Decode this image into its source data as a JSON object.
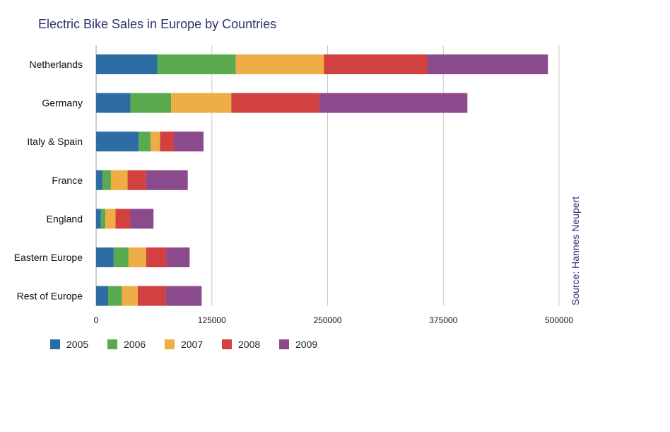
{
  "chart_data": {
    "type": "bar",
    "orientation": "horizontal",
    "stacked": true,
    "title": "Electric Bike Sales in Europe by Countries",
    "categories": [
      "Netherlands",
      "Germany",
      "Italy & Spain",
      "France",
      "England",
      "Eastern Europe",
      "Rest of Europe"
    ],
    "series": [
      {
        "name": "2005",
        "color": "#2e6da4",
        "values": [
          66000,
          37000,
          46000,
          7000,
          5000,
          19000,
          13000
        ]
      },
      {
        "name": "2006",
        "color": "#5aaa4f",
        "values": [
          85000,
          44000,
          13000,
          9000,
          5000,
          16000,
          15000
        ]
      },
      {
        "name": "2007",
        "color": "#eeae45",
        "values": [
          95000,
          65000,
          10000,
          18000,
          11000,
          19000,
          17000
        ]
      },
      {
        "name": "2008",
        "color": "#d24040",
        "values": [
          112000,
          95000,
          15000,
          20000,
          16000,
          22000,
          30000
        ]
      },
      {
        "name": "2009",
        "color": "#8a4a8c",
        "values": [
          130000,
          160000,
          32000,
          45000,
          25000,
          25000,
          39000
        ]
      }
    ],
    "xlim": [
      0,
      500000
    ],
    "xticks": [
      "0",
      "125000",
      "250000",
      "375000",
      "500000"
    ],
    "xtick_values": [
      0,
      125000,
      250000,
      375000,
      500000
    ],
    "grid": "vertical",
    "legend_position": "bottom-left",
    "source": "Source: Hannes Neupert"
  }
}
